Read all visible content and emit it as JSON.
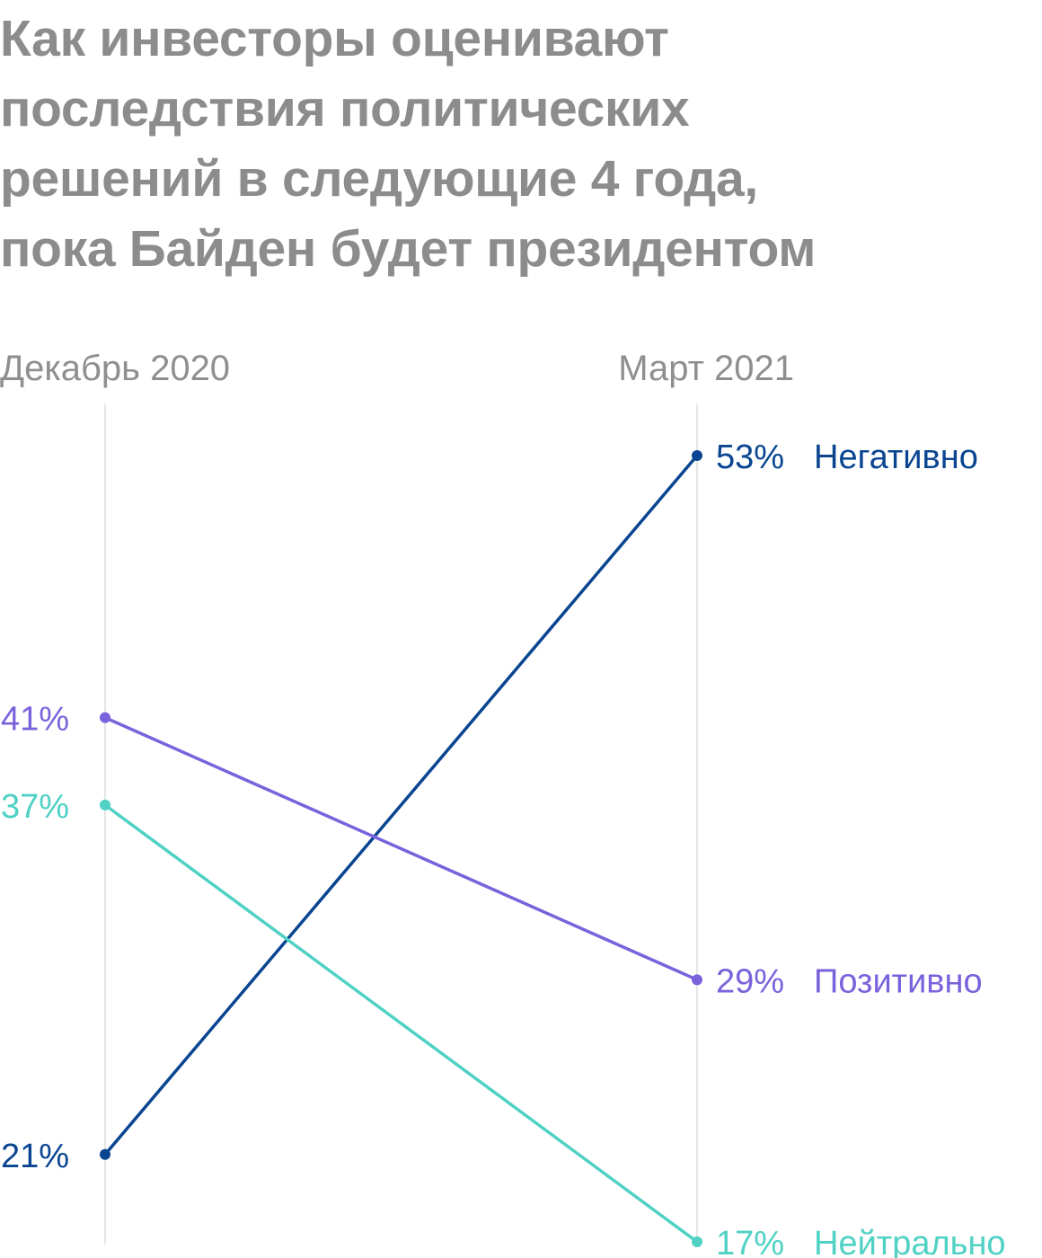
{
  "title_lines": [
    "Как инвесторы оценивают",
    "последствия политических",
    "решений в следующие 4 года,",
    "пока Байден будет президентом"
  ],
  "chart_data": {
    "type": "slope",
    "title": "Как инвесторы оценивают последствия политических решений в следующие 4 года, пока Байден будет президентом",
    "categories": [
      "Декабрь 2020",
      "Март 2021"
    ],
    "unit": "%",
    "grid": true,
    "series": [
      {
        "name": "Негативно",
        "values": [
          21,
          53
        ],
        "color": "#0a4591"
      },
      {
        "name": "Позитивно",
        "values": [
          41,
          29
        ],
        "color": "#7a62dc"
      },
      {
        "name": "Нейтрально",
        "values": [
          37,
          17
        ],
        "color": "#4fd1c4"
      }
    ]
  },
  "colors": {
    "title": "#8c8c8c",
    "axis_label": "#8f8f8f",
    "gridline": "#dddddd"
  }
}
